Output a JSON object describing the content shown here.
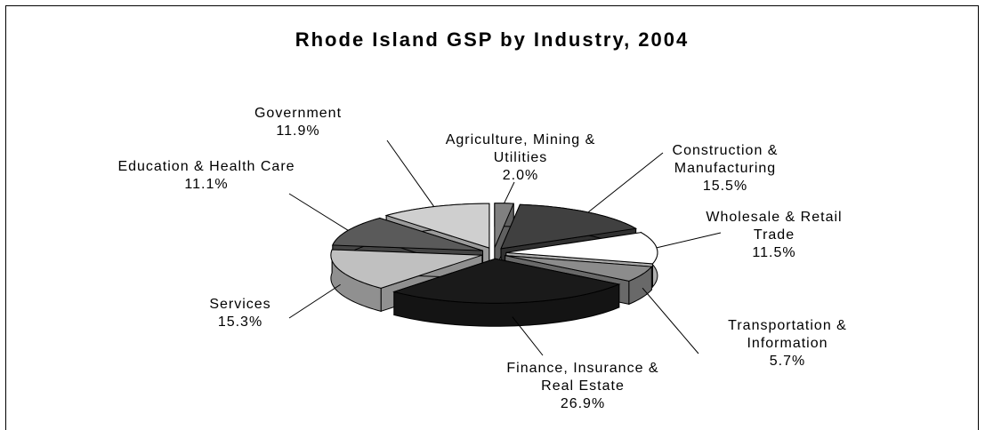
{
  "chart_data": {
    "type": "pie3d",
    "title": "Rhode Island GSP by Industry, 2004",
    "categories": [
      "Agriculture, Mining & Utilities",
      "Construction & Manufacturing",
      "Wholesale & Retail Trade",
      "Transportation & Information",
      "Finance, Insurance & Real Estate",
      "Services",
      "Education & Health Care",
      "Government"
    ],
    "values": [
      2.0,
      15.5,
      11.5,
      5.7,
      26.9,
      15.3,
      11.1,
      11.9
    ],
    "value_labels": [
      "2.0%",
      "15.5%",
      "11.5%",
      "5.7%",
      "26.9%",
      "15.3%",
      "11.1%",
      "11.9%"
    ],
    "colors": [
      "#808080",
      "#404040",
      "#ffffff",
      "#8c8c8c",
      "#1a1a1a",
      "#c0c0c0",
      "#5a5a5a",
      "#cfcfcf"
    ]
  }
}
